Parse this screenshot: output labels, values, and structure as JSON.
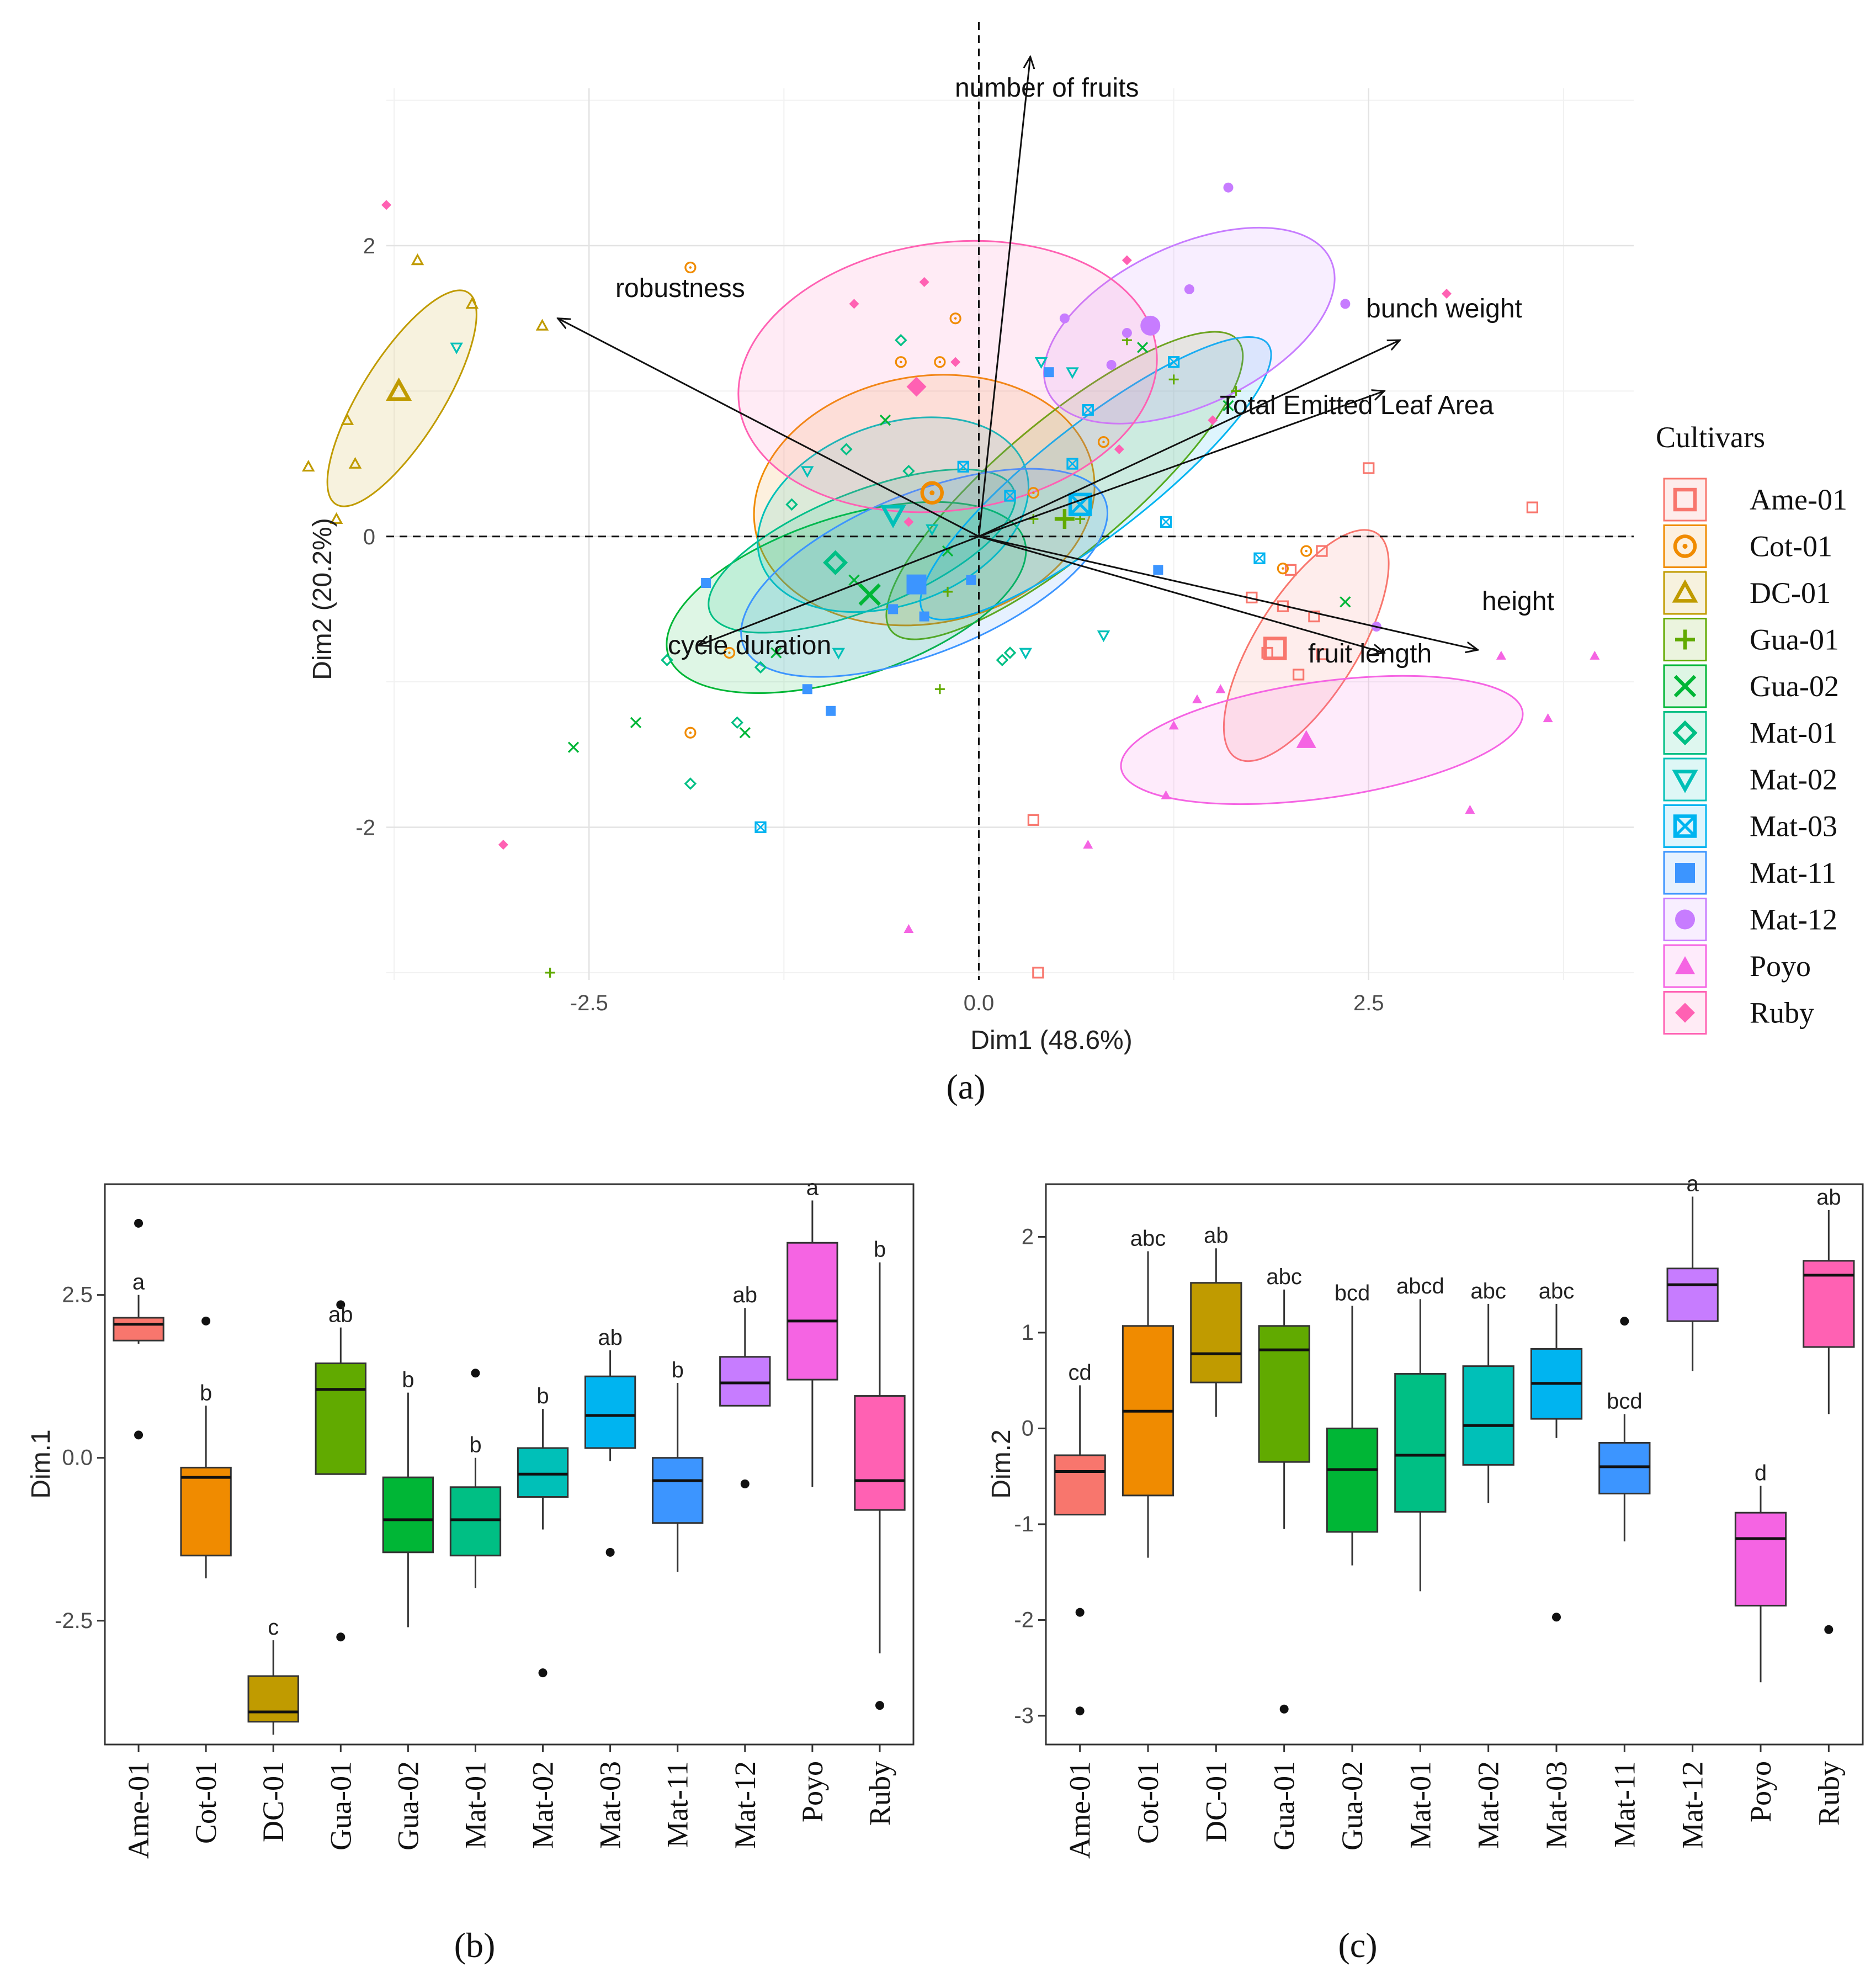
{
  "colors": {
    "Ame-01": "#F8766D",
    "Cot-01": "#F08B00",
    "DC-01": "#C09B00",
    "Gua-01": "#61AA00",
    "Gua-02": "#00B636",
    "Mat-01": "#00BF84",
    "Mat-02": "#00C0B8",
    "Mat-03": "#00B4F0",
    "Mat-11": "#3C95FF",
    "Mat-12": "#C77CFF",
    "Poyo": "#F564E3",
    "Ruby": "#FF61B3"
  },
  "panels": {
    "a": "(a)",
    "b": "(b)",
    "c": "(c)"
  },
  "chart_data": [
    {
      "type": "scatter",
      "title": "",
      "xlabel": "Dim1 (48.6%)",
      "ylabel": "Dim2 (20.2%)",
      "xlim": [
        -3.8,
        4.2
      ],
      "ylim": [
        -3.05,
        3.5
      ],
      "xticks": [
        -2.5,
        0.0,
        2.5
      ],
      "xtick_labels": [
        "-2.5",
        "0.0",
        "2.5"
      ],
      "yticks": [
        -2,
        0,
        2
      ],
      "ytick_labels": [
        "-2",
        "0",
        "2"
      ],
      "legend_title": "Cultivars",
      "legend_position": "right",
      "vectors": [
        {
          "label": "number of fruits",
          "x": 0.33,
          "y": 3.3
        },
        {
          "label": "robustness",
          "x": -2.7,
          "y": 1.5
        },
        {
          "label": "bunch weight",
          "x": 2.7,
          "y": 1.35
        },
        {
          "label": "Total Emitted Leaf Area",
          "x": 2.6,
          "y": 1.0
        },
        {
          "label": "height",
          "x": 3.2,
          "y": -0.78
        },
        {
          "label": "fruit length",
          "x": 2.6,
          "y": -0.8
        },
        {
          "label": "cycle duration",
          "x": -1.8,
          "y": -0.75
        }
      ],
      "series": [
        {
          "name": "Ame-01",
          "marker": "square-open",
          "centroid": [
            1.9,
            -0.77
          ],
          "ellipse": {
            "cx": 2.1,
            "cy": -0.75,
            "rx": 0.85,
            "ry": 0.35,
            "angle": 58
          },
          "points": [
            [
              3.55,
              0.2
            ],
            [
              2.5,
              0.47
            ],
            [
              1.75,
              -0.42
            ],
            [
              1.95,
              -0.48
            ],
            [
              2.0,
              -0.23
            ],
            [
              2.15,
              -0.55
            ],
            [
              2.2,
              -0.81
            ],
            [
              2.05,
              -0.95
            ],
            [
              1.85,
              -0.8
            ],
            [
              0.35,
              -1.95
            ],
            [
              0.38,
              -3.0
            ],
            [
              2.2,
              -0.1
            ]
          ]
        },
        {
          "name": "Cot-01",
          "marker": "circle-dot",
          "centroid": [
            -0.3,
            0.3
          ],
          "ellipse": {
            "cx": -0.35,
            "cy": 0.25,
            "rx": 1.1,
            "ry": 0.85,
            "angle": 10
          },
          "points": [
            [
              -1.85,
              1.85
            ],
            [
              -0.15,
              1.5
            ],
            [
              -0.25,
              1.2
            ],
            [
              -0.5,
              1.2
            ],
            [
              0.8,
              0.65
            ],
            [
              -1.6,
              -0.8
            ],
            [
              -1.85,
              -1.35
            ],
            [
              2.1,
              -0.1
            ],
            [
              1.95,
              -0.22
            ],
            [
              0.35,
              0.3
            ]
          ]
        },
        {
          "name": "DC-01",
          "marker": "triangle-open",
          "centroid": [
            -3.72,
            1.0
          ],
          "ellipse": {
            "cx": -3.7,
            "cy": 0.95,
            "rx": 0.8,
            "ry": 0.28,
            "angle": 58
          },
          "points": [
            [
              -3.6,
              1.9
            ],
            [
              -3.25,
              1.6
            ],
            [
              -2.8,
              1.45
            ],
            [
              -4.05,
              0.8
            ],
            [
              -4.0,
              0.5
            ],
            [
              -4.3,
              0.48
            ],
            [
              -4.12,
              0.12
            ]
          ]
        },
        {
          "name": "Gua-01",
          "marker": "plus",
          "centroid": [
            0.55,
            0.12
          ],
          "ellipse": {
            "cx": 0.55,
            "cy": 0.35,
            "rx": 1.45,
            "ry": 0.45,
            "angle": 40
          },
          "points": [
            [
              1.65,
              1.0
            ],
            [
              1.25,
              1.08
            ],
            [
              0.95,
              1.35
            ],
            [
              -0.2,
              -0.38
            ],
            [
              -0.25,
              -1.05
            ],
            [
              -2.75,
              -3.0
            ],
            [
              0.35,
              0.12
            ],
            [
              0.65,
              0.12
            ]
          ]
        },
        {
          "name": "Gua-02",
          "marker": "x",
          "centroid": [
            -0.7,
            -0.4
          ],
          "ellipse": {
            "cx": -0.85,
            "cy": -0.42,
            "rx": 1.2,
            "ry": 0.55,
            "angle": 18
          },
          "points": [
            [
              -2.6,
              -1.45
            ],
            [
              -2.2,
              -1.28
            ],
            [
              -1.5,
              -1.35
            ],
            [
              -1.3,
              -0.8
            ],
            [
              -0.6,
              0.8
            ],
            [
              -0.8,
              -0.3
            ],
            [
              1.05,
              1.3
            ],
            [
              1.6,
              0.9
            ],
            [
              2.35,
              -0.45
            ],
            [
              -0.2,
              -0.1
            ]
          ]
        },
        {
          "name": "Mat-01",
          "marker": "diamond-open",
          "centroid": [
            -0.92,
            -0.18
          ],
          "ellipse": {
            "cx": -0.75,
            "cy": -0.1,
            "rx": 1.05,
            "ry": 0.4,
            "angle": 22
          },
          "points": [
            [
              -1.85,
              -1.7
            ],
            [
              -1.55,
              -1.28
            ],
            [
              -2.0,
              -0.85
            ],
            [
              -0.85,
              0.6
            ],
            [
              -0.45,
              0.45
            ],
            [
              -0.5,
              1.35
            ],
            [
              -1.2,
              0.22
            ],
            [
              0.2,
              -0.8
            ],
            [
              0.15,
              -0.85
            ],
            [
              -1.4,
              -0.9
            ]
          ]
        },
        {
          "name": "Mat-02",
          "marker": "triangle-down-open",
          "centroid": [
            -0.55,
            0.15
          ],
          "ellipse": {
            "cx": -0.55,
            "cy": 0.15,
            "rx": 0.9,
            "ry": 0.62,
            "angle": 20
          },
          "points": [
            [
              -3.35,
              1.3
            ],
            [
              -1.1,
              0.45
            ],
            [
              -0.3,
              0.05
            ],
            [
              0.4,
              1.2
            ],
            [
              0.8,
              -0.68
            ],
            [
              0.3,
              -0.8
            ],
            [
              0.6,
              1.13
            ],
            [
              -0.9,
              -0.8
            ]
          ]
        },
        {
          "name": "Mat-03",
          "marker": "square-cross",
          "centroid": [
            0.65,
            0.22
          ],
          "ellipse": {
            "cx": 0.75,
            "cy": 0.4,
            "rx": 1.4,
            "ry": 0.38,
            "angle": 38
          },
          "points": [
            [
              1.25,
              1.2
            ],
            [
              0.7,
              0.87
            ],
            [
              0.6,
              0.5
            ],
            [
              -0.1,
              0.48
            ],
            [
              0.2,
              0.28
            ],
            [
              1.2,
              0.1
            ],
            [
              1.8,
              -0.15
            ],
            [
              -1.4,
              -2.0
            ]
          ]
        },
        {
          "name": "Mat-11",
          "marker": "square",
          "centroid": [
            -0.4,
            -0.33
          ],
          "ellipse": {
            "cx": -0.35,
            "cy": -0.25,
            "rx": 1.25,
            "ry": 0.55,
            "angle": 22
          },
          "points": [
            [
              -1.75,
              -0.32
            ],
            [
              -1.1,
              -1.05
            ],
            [
              -0.95,
              -1.2
            ],
            [
              -0.55,
              -0.5
            ],
            [
              -0.35,
              -0.55
            ],
            [
              0.45,
              1.13
            ],
            [
              1.15,
              -0.23
            ],
            [
              -0.05,
              -0.3
            ]
          ]
        },
        {
          "name": "Mat-12",
          "marker": "circle",
          "centroid": [
            1.1,
            1.45
          ],
          "ellipse": {
            "cx": 1.35,
            "cy": 1.45,
            "rx": 1.0,
            "ry": 0.55,
            "angle": 25
          },
          "points": [
            [
              1.6,
              2.4
            ],
            [
              1.35,
              1.7
            ],
            [
              0.95,
              1.4
            ],
            [
              0.55,
              1.5
            ],
            [
              2.35,
              1.6
            ],
            [
              2.55,
              -0.62
            ],
            [
              0.85,
              1.18
            ]
          ]
        },
        {
          "name": "Poyo",
          "marker": "triangle",
          "centroid": [
            2.1,
            -1.4
          ],
          "ellipse": {
            "cx": 2.2,
            "cy": -1.4,
            "rx": 1.3,
            "ry": 0.4,
            "angle": 8
          },
          "points": [
            [
              3.35,
              -0.82
            ],
            [
              3.95,
              -0.82
            ],
            [
              3.65,
              -1.25
            ],
            [
              3.15,
              -1.88
            ],
            [
              1.25,
              -1.3
            ],
            [
              1.55,
              -1.05
            ],
            [
              1.2,
              -1.78
            ],
            [
              0.7,
              -2.12
            ],
            [
              -0.45,
              -2.7
            ],
            [
              1.4,
              -1.12
            ]
          ]
        },
        {
          "name": "Ruby",
          "marker": "diamond",
          "centroid": [
            -0.4,
            1.03
          ],
          "ellipse": {
            "cx": -0.2,
            "cy": 1.1,
            "rx": 1.35,
            "ry": 0.92,
            "angle": 8
          },
          "points": [
            [
              -3.8,
              2.28
            ],
            [
              -3.05,
              -2.12
            ],
            [
              -0.35,
              1.75
            ],
            [
              -0.8,
              1.6
            ],
            [
              -0.15,
              1.2
            ],
            [
              0.95,
              1.9
            ],
            [
              1.5,
              0.8
            ],
            [
              3.0,
              1.67
            ],
            [
              0.9,
              0.6
            ],
            [
              -0.45,
              0.1
            ]
          ]
        }
      ]
    },
    {
      "type": "box",
      "title": "",
      "xlabel": "",
      "ylabel": "Dim.1",
      "ylim": [
        -4.4,
        4.2
      ],
      "yticks": [
        -2.5,
        0.0,
        2.5
      ],
      "ytick_labels": [
        "-2.5",
        "0.0",
        "2.5"
      ],
      "categories": [
        "Ame-01",
        "Cot-01",
        "DC-01",
        "Gua-01",
        "Gua-02",
        "Mat-01",
        "Mat-02",
        "Mat-03",
        "Mat-11",
        "Mat-12",
        "Poyo",
        "Ruby"
      ],
      "boxes": [
        {
          "q1": 1.8,
          "median": 2.05,
          "q3": 2.15,
          "lo": 1.75,
          "hi": 2.5,
          "outliers": [
            3.6,
            0.35
          ],
          "letter": "a"
        },
        {
          "q1": -1.5,
          "median": -0.3,
          "q3": -0.15,
          "lo": -1.85,
          "hi": 0.8,
          "outliers": [
            2.1
          ],
          "letter": "b"
        },
        {
          "q1": -4.05,
          "median": -3.9,
          "q3": -3.35,
          "lo": -4.25,
          "hi": -2.8,
          "outliers": [],
          "letter": "c"
        },
        {
          "q1": -0.25,
          "median": 1.05,
          "q3": 1.45,
          "lo": -0.25,
          "hi": 2.0,
          "outliers": [
            2.35,
            -2.75
          ],
          "letter": "ab"
        },
        {
          "q1": -1.45,
          "median": -0.95,
          "q3": -0.3,
          "lo": -2.6,
          "hi": 1.0,
          "outliers": [],
          "letter": "b"
        },
        {
          "q1": -1.5,
          "median": -0.95,
          "q3": -0.45,
          "lo": -2.0,
          "hi": 0.0,
          "outliers": [
            1.3
          ],
          "letter": "b"
        },
        {
          "q1": -0.6,
          "median": -0.25,
          "q3": 0.15,
          "lo": -1.1,
          "hi": 0.75,
          "outliers": [
            -3.3
          ],
          "letter": "b"
        },
        {
          "q1": 0.15,
          "median": 0.65,
          "q3": 1.25,
          "lo": -0.05,
          "hi": 1.65,
          "outliers": [
            -1.45
          ],
          "letter": "ab"
        },
        {
          "q1": -1.0,
          "median": -0.35,
          "q3": 0.0,
          "lo": -1.75,
          "hi": 1.15,
          "outliers": [],
          "letter": "b"
        },
        {
          "q1": 0.8,
          "median": 1.15,
          "q3": 1.55,
          "lo": 0.8,
          "hi": 2.3,
          "outliers": [
            -0.4
          ],
          "letter": "ab"
        },
        {
          "q1": 1.2,
          "median": 2.1,
          "q3": 3.3,
          "lo": -0.45,
          "hi": 3.95,
          "outliers": [],
          "letter": "a"
        },
        {
          "q1": -0.8,
          "median": -0.35,
          "q3": 0.95,
          "lo": -3.0,
          "hi": 3.0,
          "outliers": [
            -3.8
          ],
          "letter": "b"
        }
      ]
    },
    {
      "type": "box",
      "title": "",
      "xlabel": "",
      "ylabel": "Dim.2",
      "ylim": [
        -3.3,
        2.55
      ],
      "yticks": [
        -3,
        -2,
        -1,
        0,
        1,
        2
      ],
      "ytick_labels": [
        "-3",
        "-2",
        "-1",
        "0",
        "1",
        "2"
      ],
      "categories": [
        "Ame-01",
        "Cot-01",
        "DC-01",
        "Gua-01",
        "Gua-02",
        "Mat-01",
        "Mat-02",
        "Mat-03",
        "Mat-11",
        "Mat-12",
        "Poyo",
        "Ruby"
      ],
      "boxes": [
        {
          "q1": -0.9,
          "median": -0.45,
          "q3": -0.28,
          "lo": -0.9,
          "hi": 0.45,
          "outliers": [
            -1.92,
            -2.95
          ],
          "letter": "cd"
        },
        {
          "q1": -0.7,
          "median": 0.18,
          "q3": 1.07,
          "lo": -1.35,
          "hi": 1.85,
          "outliers": [],
          "letter": "abc"
        },
        {
          "q1": 0.48,
          "median": 0.78,
          "q3": 1.52,
          "lo": 0.12,
          "hi": 1.88,
          "outliers": [],
          "letter": "ab"
        },
        {
          "q1": -0.35,
          "median": 0.82,
          "q3": 1.07,
          "lo": -1.05,
          "hi": 1.45,
          "outliers": [
            -2.93
          ],
          "letter": "abc"
        },
        {
          "q1": -1.08,
          "median": -0.43,
          "q3": 0.0,
          "lo": -1.43,
          "hi": 1.28,
          "outliers": [],
          "letter": "bcd"
        },
        {
          "q1": -0.87,
          "median": -0.28,
          "q3": 0.57,
          "lo": -1.7,
          "hi": 1.35,
          "outliers": [],
          "letter": "abcd"
        },
        {
          "q1": -0.38,
          "median": 0.03,
          "q3": 0.65,
          "lo": -0.78,
          "hi": 1.3,
          "outliers": [],
          "letter": "abc"
        },
        {
          "q1": 0.1,
          "median": 0.47,
          "q3": 0.83,
          "lo": -0.1,
          "hi": 1.3,
          "outliers": [
            -1.97
          ],
          "letter": "abc"
        },
        {
          "q1": -0.68,
          "median": -0.4,
          "q3": -0.15,
          "lo": -1.18,
          "hi": 0.15,
          "outliers": [
            1.12
          ],
          "letter": "bcd"
        },
        {
          "q1": 1.12,
          "median": 1.5,
          "q3": 1.67,
          "lo": 0.6,
          "hi": 2.42,
          "outliers": [],
          "letter": "a"
        },
        {
          "q1": -1.85,
          "median": -1.15,
          "q3": -0.88,
          "lo": -2.65,
          "hi": -0.6,
          "outliers": [],
          "letter": "d"
        },
        {
          "q1": 0.85,
          "median": 1.6,
          "q3": 1.75,
          "lo": 0.15,
          "hi": 2.28,
          "outliers": [
            -2.1
          ],
          "letter": "ab"
        }
      ]
    }
  ]
}
